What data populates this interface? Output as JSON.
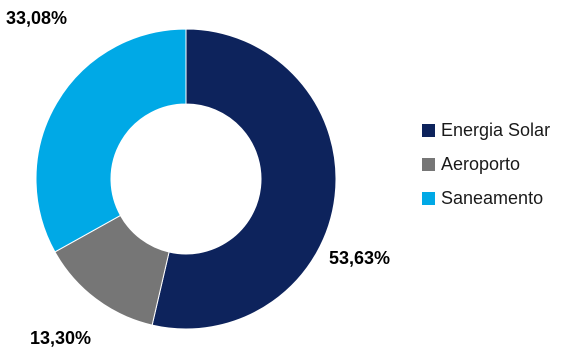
{
  "chart_data": {
    "type": "pie",
    "variant": "donut",
    "categories": [
      "Energia Solar",
      "Aeroporto",
      "Saneamento"
    ],
    "values": [
      53.63,
      13.3,
      33.08
    ],
    "labels": [
      "53,63%",
      "13,30%",
      "33,08%"
    ],
    "colors": [
      "#0d235c",
      "#767676",
      "#00a9e6"
    ],
    "legend": {
      "position": "right",
      "items": [
        {
          "label": "Energia Solar",
          "color": "#0d235c"
        },
        {
          "label": "Aeroporto",
          "color": "#767676"
        },
        {
          "label": "Saneamento",
          "color": "#00a9e6"
        }
      ]
    }
  }
}
